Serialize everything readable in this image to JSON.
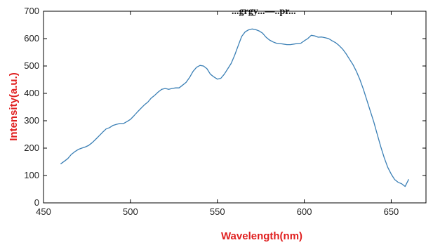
{
  "header_fragment": "...grgy...—..pr...",
  "chart_data": {
    "type": "line",
    "title": "",
    "xlabel": "Wavelength(nm)",
    "ylabel": "Intensity(a.u.)",
    "xlim": [
      450,
      670
    ],
    "ylim": [
      0,
      700
    ],
    "xticks": [
      450,
      500,
      550,
      600,
      650
    ],
    "yticks": [
      0,
      100,
      200,
      300,
      400,
      500,
      600,
      700
    ],
    "grid": false,
    "label_color": "#e02020",
    "series": [
      {
        "color": "#3a7fb5",
        "x": [
          460,
          462,
          464,
          466,
          468,
          470,
          472,
          474,
          476,
          478,
          480,
          482,
          484,
          486,
          488,
          490,
          492,
          494,
          496,
          498,
          500,
          502,
          504,
          506,
          508,
          510,
          512,
          514,
          516,
          518,
          520,
          522,
          524,
          526,
          528,
          530,
          532,
          534,
          536,
          538,
          540,
          542,
          544,
          546,
          548,
          550,
          552,
          554,
          556,
          558,
          560,
          562,
          564,
          566,
          568,
          570,
          572,
          574,
          576,
          578,
          580,
          582,
          584,
          586,
          588,
          590,
          592,
          594,
          596,
          598,
          600,
          602,
          604,
          606,
          608,
          610,
          612,
          614,
          616,
          618,
          620,
          622,
          624,
          626,
          628,
          630,
          632,
          634,
          636,
          638,
          640,
          642,
          644,
          646,
          648,
          650,
          652,
          654,
          656,
          658,
          660
        ],
        "values": [
          143,
          152,
          162,
          177,
          187,
          195,
          200,
          204,
          210,
          220,
          232,
          245,
          258,
          270,
          275,
          283,
          287,
          290,
          290,
          297,
          305,
          318,
          332,
          345,
          358,
          368,
          383,
          393,
          405,
          415,
          418,
          415,
          418,
          420,
          420,
          430,
          440,
          458,
          480,
          495,
          502,
          500,
          490,
          470,
          460,
          452,
          455,
          470,
          490,
          510,
          540,
          575,
          608,
          625,
          632,
          635,
          633,
          628,
          620,
          605,
          595,
          588,
          583,
          582,
          580,
          578,
          578,
          580,
          582,
          583,
          592,
          600,
          612,
          610,
          605,
          606,
          603,
          600,
          592,
          585,
          575,
          562,
          545,
          525,
          505,
          480,
          450,
          415,
          375,
          335,
          295,
          250,
          205,
          165,
          130,
          105,
          85,
          75,
          70,
          60,
          85
        ]
      }
    ]
  }
}
